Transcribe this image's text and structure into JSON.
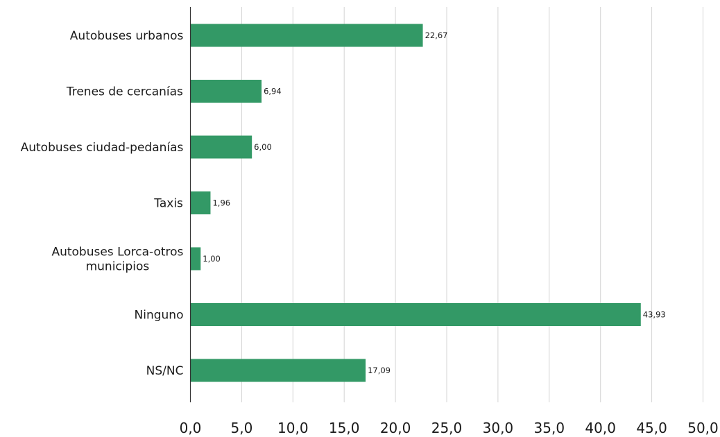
{
  "chart_data": {
    "type": "bar",
    "orientation": "horizontal",
    "categories": [
      "Autobuses urbanos",
      "Trenes de cercanías",
      "Autobuses ciudad-pedanías",
      "Taxis",
      "Autobuses Lorca-otros municipios",
      "Ninguno",
      "NS/NC"
    ],
    "category_label_lines": [
      [
        "Autobuses urbanos"
      ],
      [
        "Trenes de cercanías"
      ],
      [
        "Autobuses ciudad-pedanías"
      ],
      [
        "Taxis"
      ],
      [
        "Autobuses Lorca-otros",
        "municipios"
      ],
      [
        "Ninguno"
      ],
      [
        "NS/NC"
      ]
    ],
    "values": [
      22.67,
      6.94,
      6.0,
      1.96,
      1.0,
      43.93,
      17.09
    ],
    "data_labels": [
      "22,67",
      "6,94",
      "6,00",
      "1,96",
      "1,00",
      "43,93",
      "17,09"
    ],
    "xlim": [
      0,
      50
    ],
    "x_ticks": [
      0,
      5,
      10,
      15,
      20,
      25,
      30,
      35,
      40,
      45,
      50
    ],
    "x_tick_labels": [
      "0,0",
      "5,0",
      "10,0",
      "15,0",
      "20,0",
      "25,0",
      "30,0",
      "35,0",
      "40,0",
      "45,0",
      "50,0"
    ],
    "title": "",
    "xlabel": "",
    "ylabel": "",
    "grid": "vertical",
    "legend": "none",
    "bar_color": "#339966"
  }
}
